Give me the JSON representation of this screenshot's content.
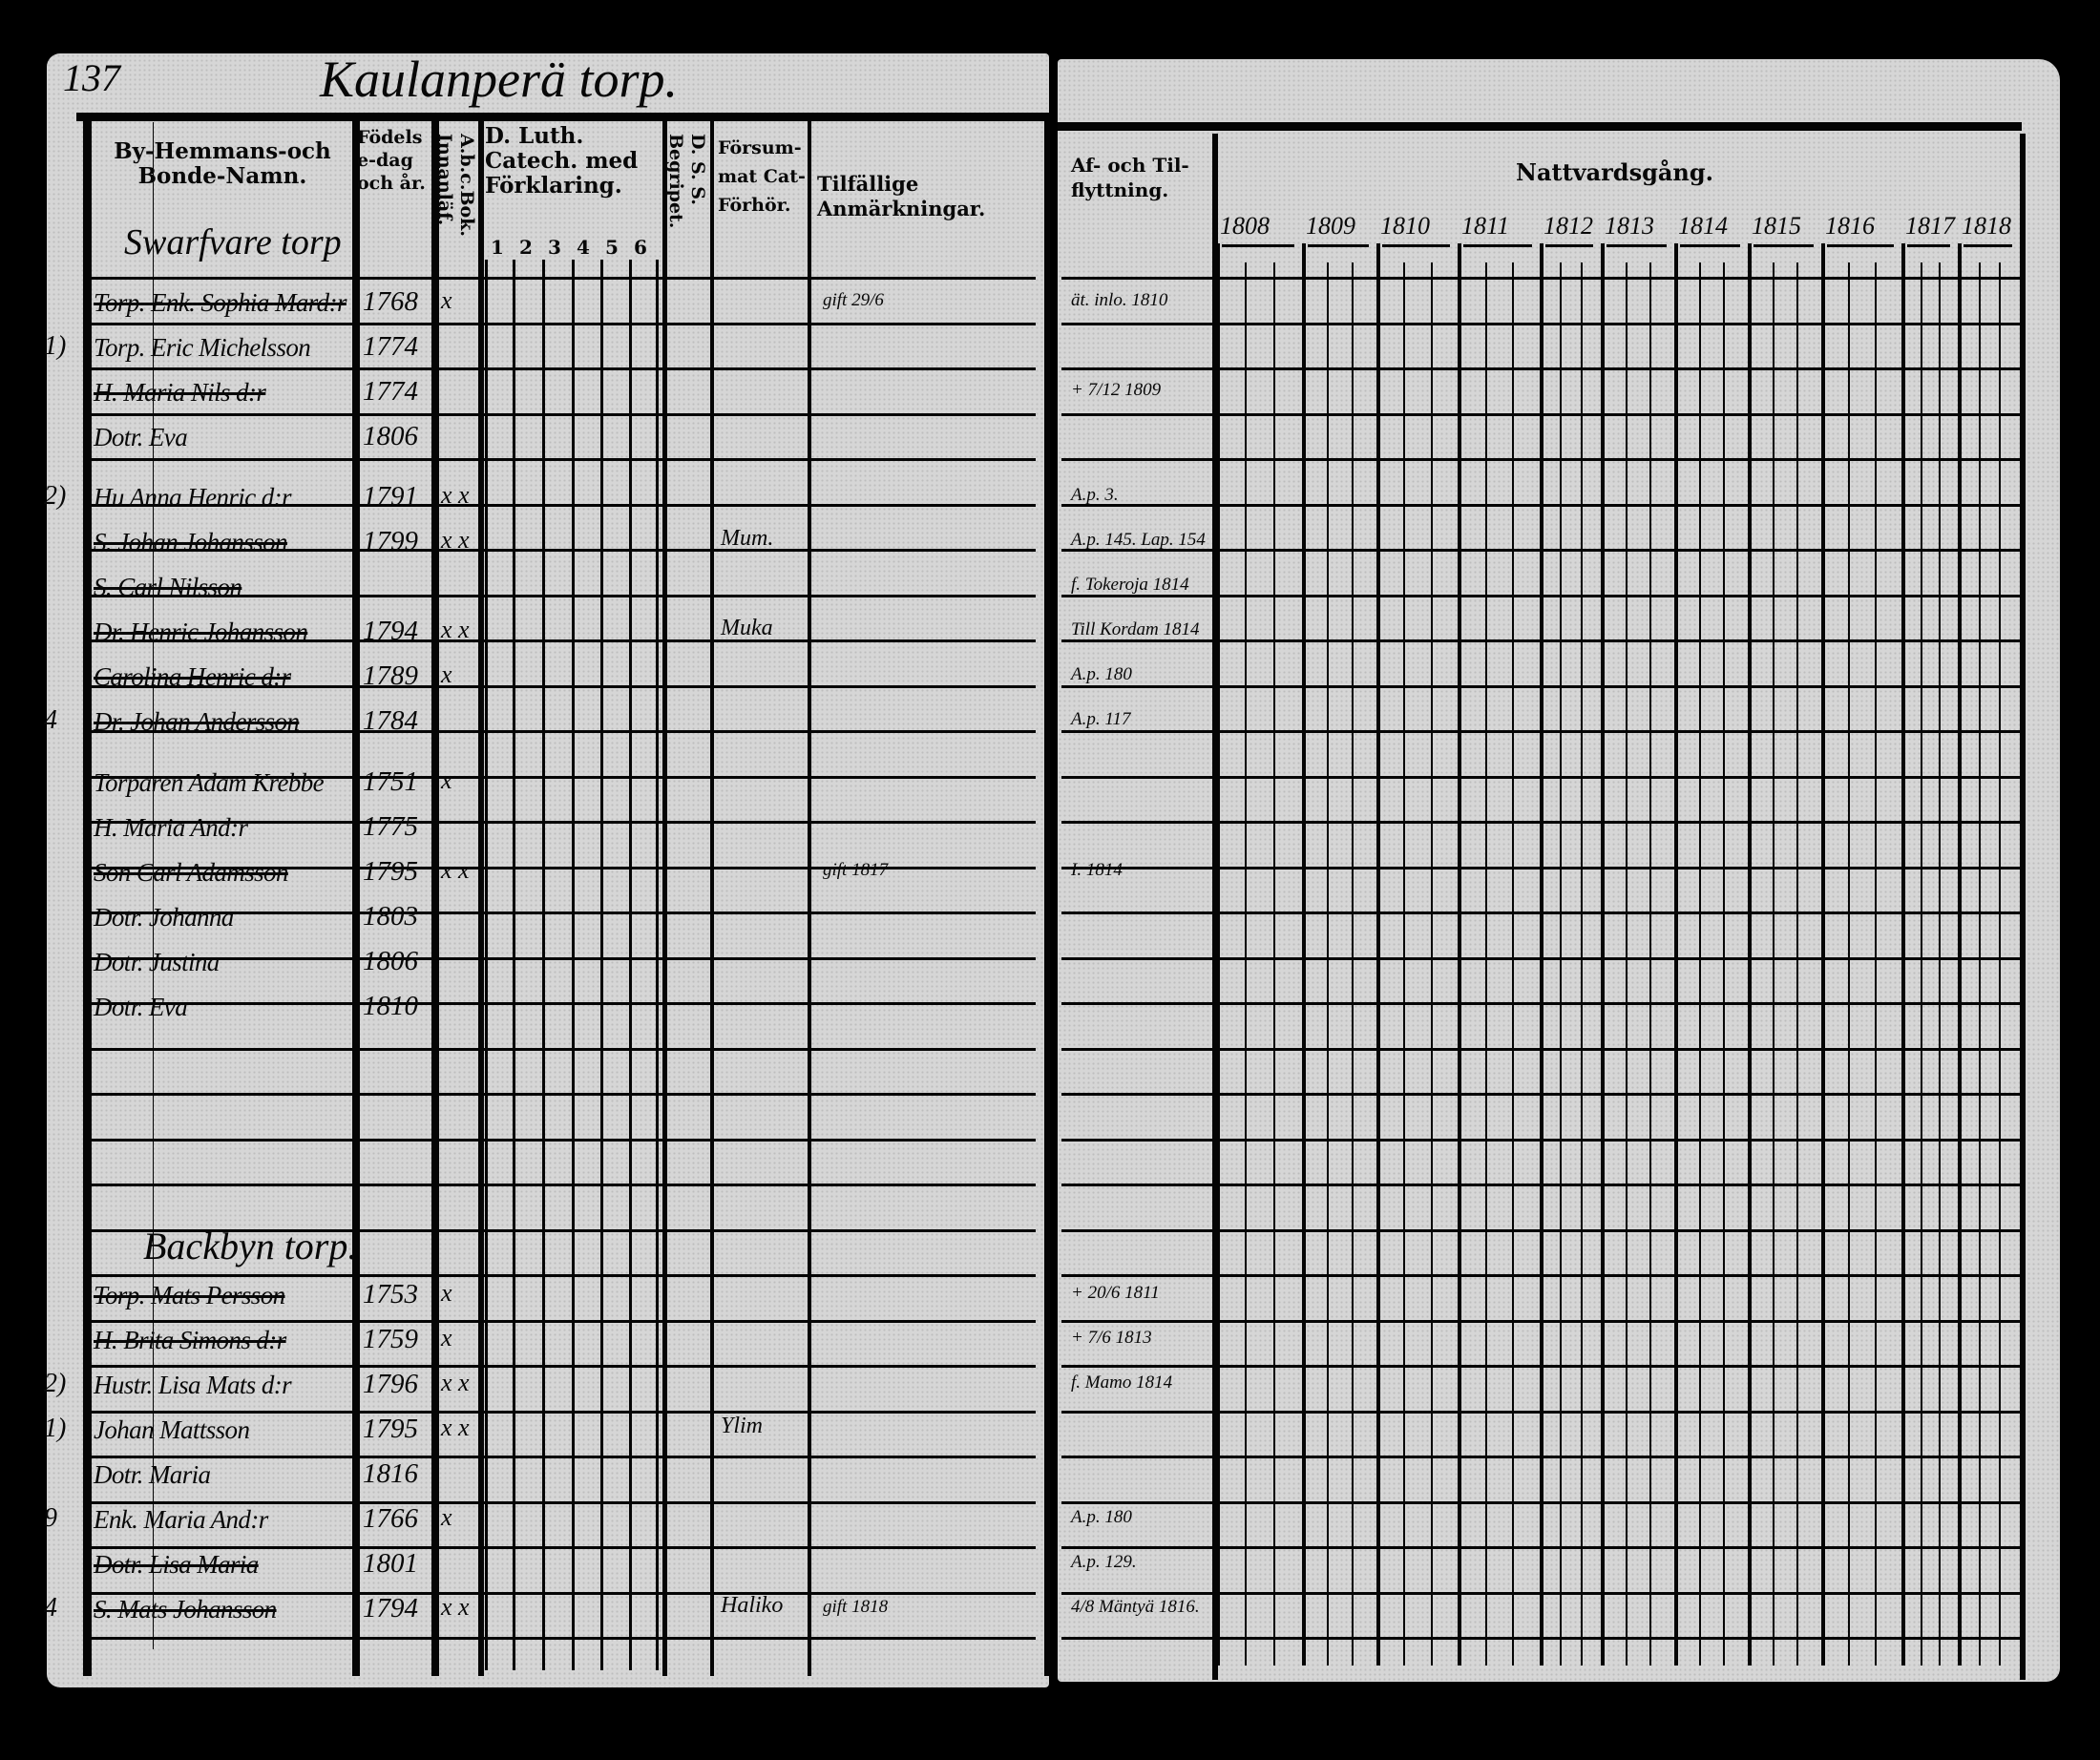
{
  "left_page": {
    "page_number": "137",
    "title": "Kaulanperä torp.",
    "headers": {
      "name": "By-Hemmans-och Bonde-Namn.",
      "birth": "Födelse-dag och år.",
      "abc": "A.b.c.Bok.",
      "innanlas": "Innanläf.",
      "catechism": "D. Luth. Catech. med Förklaring.",
      "catechism_cols": [
        "1",
        "2",
        "3",
        "4",
        "5",
        "6"
      ],
      "begripe": "Begripet.",
      "ds": "D. S. S.",
      "forsum": "Försum-mat Cat-Förhör.",
      "remarks": "Tilfällige Anmärkningar."
    },
    "section1": "Swarfvare torp",
    "section2": "Backbyn torp.",
    "rows": [
      {
        "margin": "",
        "name": "Torp. Enk. Sophia Mard:r",
        "year": "1768",
        "marks": "x",
        "strike": true,
        "forsum": "",
        "remark": "gift 29/6",
        "move": "ät. inlo. 1810"
      },
      {
        "margin": "1)",
        "name": "Torp. Eric Michelsson",
        "year": "1774",
        "marks": "",
        "strike": false,
        "forsum": "",
        "remark": "",
        "move": ""
      },
      {
        "margin": "",
        "name": "H. Maria Nils d:r",
        "year": "1774",
        "marks": "",
        "strike": true,
        "forsum": "",
        "remark": "",
        "move": "+ 7/12 1809"
      },
      {
        "margin": "",
        "name": "Dotr. Eva",
        "year": "1806",
        "marks": "",
        "strike": false,
        "forsum": "",
        "remark": "",
        "move": ""
      },
      {
        "margin": "2)",
        "name": "Hu Anna Henric d:r",
        "year": "1791",
        "marks": "x x",
        "strike": false,
        "forsum": "",
        "remark": "",
        "move": "A.p. 3."
      },
      {
        "margin": "",
        "name": "S. Johan Johansson",
        "year": "1799",
        "marks": "x x",
        "strike": true,
        "forsum": "Mum.",
        "remark": "",
        "move": "A.p. 145. Lap. 154"
      },
      {
        "margin": "",
        "name": "S. Carl Nilsson",
        "year": "",
        "marks": "",
        "strike": true,
        "forsum": "",
        "remark": "",
        "move": "f. Tokeroja 1814"
      },
      {
        "margin": "",
        "name": "Dr. Henric Johansson",
        "year": "1794",
        "marks": "x x",
        "strike": true,
        "forsum": "Muka",
        "remark": "",
        "move": "Till Kordam 1814"
      },
      {
        "margin": "",
        "name": "Carolina Henric d:r",
        "year": "1789",
        "marks": "x",
        "strike": true,
        "forsum": "",
        "remark": "",
        "move": "A.p. 180"
      },
      {
        "margin": "4",
        "name": "Dr. Johan Andersson",
        "year": "1784",
        "marks": "",
        "strike": true,
        "forsum": "",
        "remark": "",
        "move": "A.p. 117"
      },
      {
        "margin": "",
        "name": "Torparen Adam Krebbe",
        "year": "1751",
        "marks": "x",
        "strike": false,
        "forsum": "",
        "remark": "",
        "move": ""
      },
      {
        "margin": "",
        "name": "H. Maria And:r",
        "year": "1775",
        "marks": "",
        "strike": false,
        "forsum": "",
        "remark": "",
        "move": ""
      },
      {
        "margin": "",
        "name": "Son Carl Adamsson",
        "year": "1795",
        "marks": "x x",
        "strike": true,
        "forsum": "",
        "remark": "gift 1817",
        "move": "I. 1814"
      },
      {
        "margin": "",
        "name": "Dotr. Johanna",
        "year": "1803",
        "marks": "",
        "strike": false,
        "forsum": "",
        "remark": "",
        "move": ""
      },
      {
        "margin": "",
        "name": "Dotr. Justina",
        "year": "1806",
        "marks": "",
        "strike": false,
        "forsum": "",
        "remark": "",
        "move": ""
      },
      {
        "margin": "",
        "name": "Dotr. Eva",
        "year": "1810",
        "marks": "",
        "strike": false,
        "forsum": "",
        "remark": "",
        "move": ""
      },
      {
        "margin": "",
        "name": "Torp. Mats Persson",
        "year": "1753",
        "marks": "x",
        "strike": true,
        "forsum": "",
        "remark": "",
        "move": "+ 20/6 1811"
      },
      {
        "margin": "",
        "name": "H. Brita Simons d:r",
        "year": "1759",
        "marks": "x",
        "strike": true,
        "forsum": "",
        "remark": "",
        "move": "+ 7/6 1813"
      },
      {
        "margin": "2)",
        "name": "Hustr. Lisa Mats d:r",
        "year": "1796",
        "marks": "x x",
        "strike": false,
        "forsum": "",
        "remark": "",
        "move": "f. Mamo 1814"
      },
      {
        "margin": "1)",
        "name": "Johan Mattsson",
        "year": "1795",
        "marks": "x x",
        "strike": false,
        "forsum": "Ylim",
        "remark": "",
        "move": ""
      },
      {
        "margin": "",
        "name": "Dotr. Maria",
        "year": "1816",
        "marks": "",
        "strike": false,
        "forsum": "",
        "remark": "",
        "move": ""
      },
      {
        "margin": "9",
        "name": "Enk. Maria And:r",
        "year": "1766",
        "marks": "x",
        "strike": false,
        "forsum": "",
        "remark": "",
        "move": "A.p. 180"
      },
      {
        "margin": "",
        "name": "Dotr. Lisa Maria",
        "year": "1801",
        "marks": "",
        "strike": true,
        "forsum": "",
        "remark": "",
        "move": "A.p. 129."
      },
      {
        "margin": "4",
        "name": "S. Mats Johansson",
        "year": "1794",
        "marks": "x x",
        "strike": true,
        "forsum": "Haliko",
        "remark": "gift 1818",
        "move": "4/8 Mäntyä 1816."
      }
    ]
  },
  "right_page": {
    "headers": {
      "move": "Af- och Til-flyttning.",
      "communion": "Nattvardsgång."
    },
    "years": [
      "1808",
      "1809",
      "1810",
      "1811",
      "1812",
      "1813",
      "1814",
      "1815",
      "1816",
      "1817",
      "1818"
    ]
  }
}
